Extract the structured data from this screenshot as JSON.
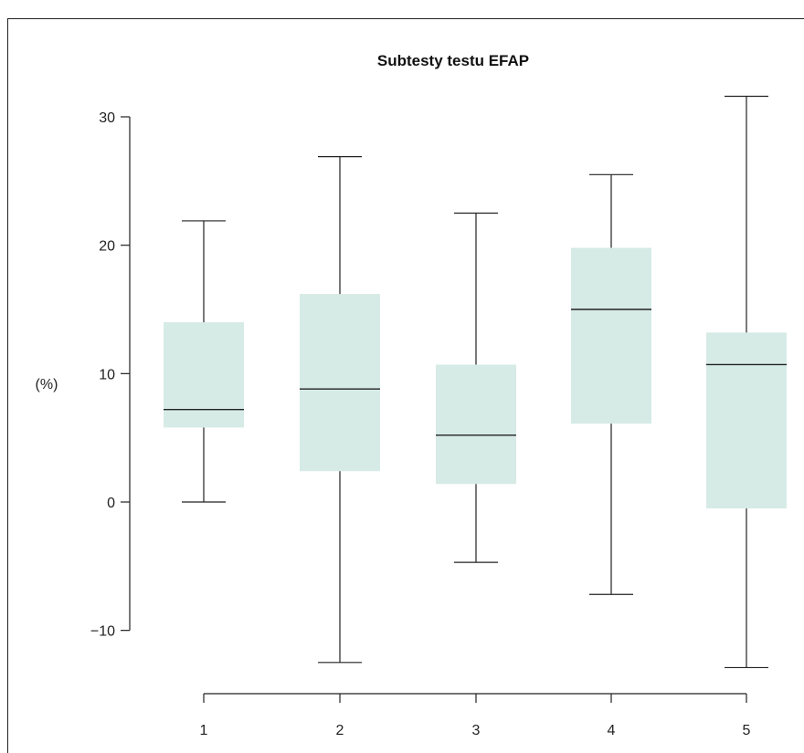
{
  "chart_data": {
    "type": "box",
    "title": "Subtesty testu EFAP",
    "xlabel": "",
    "ylabel": "(%)",
    "ylim": [
      -13,
      31.5
    ],
    "yticks": [
      30,
      20,
      10,
      0,
      -10
    ],
    "ytick_labels": [
      "30",
      "20",
      "10",
      "0",
      "−10"
    ],
    "categories": [
      "1",
      "2",
      "3",
      "4",
      "5"
    ],
    "boxes": [
      {
        "category": "1",
        "min": 0,
        "q1": 5.8,
        "median": 7.2,
        "q3": 14.0,
        "max": 21.9
      },
      {
        "category": "2",
        "min": -12.5,
        "q1": 2.4,
        "median": 8.8,
        "q3": 16.2,
        "max": 26.9
      },
      {
        "category": "3",
        "min": -4.7,
        "q1": 1.4,
        "median": 5.2,
        "q3": 10.7,
        "max": 22.5
      },
      {
        "category": "4",
        "min": -7.2,
        "q1": 6.1,
        "median": 15.0,
        "q3": 19.8,
        "max": 25.5
      },
      {
        "category": "5",
        "min": -12.9,
        "q1": -0.5,
        "median": 10.7,
        "q3": 13.2,
        "max": 31.6
      }
    ],
    "box_color": "#d6ebe6",
    "line_color": "#222222"
  }
}
